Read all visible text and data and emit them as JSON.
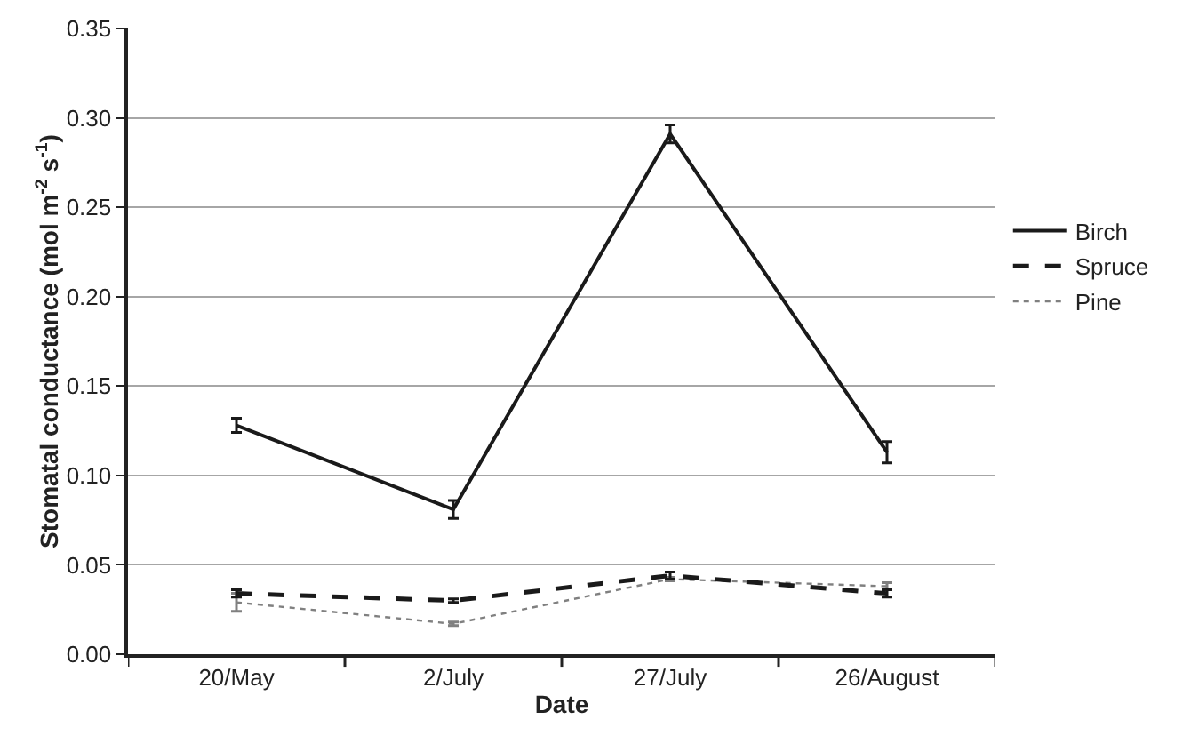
{
  "chart_data": {
    "type": "line",
    "xlabel": "Date",
    "ylabel": "Stomatal conductance (mol m$^{-2}$ s$^{-1}$)",
    "categories": [
      "20/May",
      "2/July",
      "27/July",
      "26/August"
    ],
    "series": [
      {
        "name": "Birch",
        "color": "#1a1a1a",
        "line_style": "solid",
        "values": [
          0.128,
          0.081,
          0.291,
          0.113
        ],
        "errors": [
          0.004,
          0.005,
          0.005,
          0.006
        ]
      },
      {
        "name": "Spruce",
        "color": "#1a1a1a",
        "line_style": "dashed",
        "values": [
          0.034,
          0.03,
          0.044,
          0.034
        ],
        "errors": [
          0.002,
          0.001,
          0.002,
          0.002
        ]
      },
      {
        "name": "Pine",
        "color": "#808080",
        "line_style": "dotted",
        "values": [
          0.029,
          0.017,
          0.042,
          0.038
        ],
        "errors": [
          0.005,
          0.001,
          0.001,
          0.002
        ]
      }
    ],
    "ylim": [
      0,
      0.35
    ],
    "yticks": [
      {
        "value": 0,
        "label": "0.00"
      },
      {
        "value": 0.05,
        "label": "0.05"
      },
      {
        "value": 0.1,
        "label": "0.10"
      },
      {
        "value": 0.15,
        "label": "0.15"
      },
      {
        "value": 0.2,
        "label": "0.20"
      },
      {
        "value": 0.25,
        "label": "0.25"
      },
      {
        "value": 0.3,
        "label": "0.30"
      },
      {
        "value": 0.35,
        "label": "0.35"
      }
    ],
    "grid": "y",
    "legend": "right"
  }
}
